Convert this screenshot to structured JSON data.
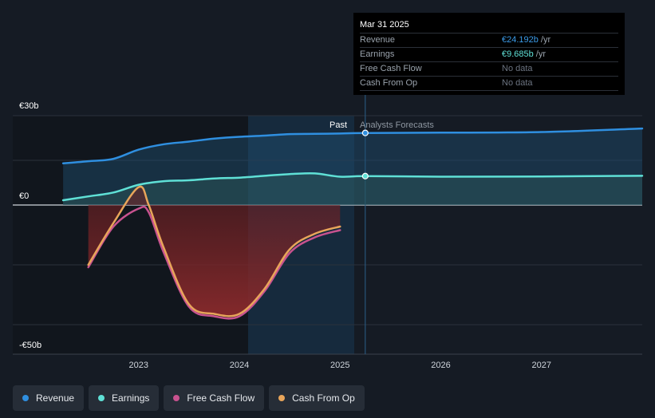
{
  "tooltip": {
    "date": "Mar 31 2025",
    "rows": [
      {
        "label": "Revenue",
        "value": "€24.192b",
        "unit": "/yr",
        "color": "#3b9be8"
      },
      {
        "label": "Earnings",
        "value": "€9.685b",
        "unit": "/yr",
        "color": "#5fe0d6"
      },
      {
        "label": "Free Cash Flow",
        "value": "No data",
        "unit": "",
        "color": "#6b7380"
      },
      {
        "label": "Cash From Op",
        "value": "No data",
        "unit": "",
        "color": "#6b7380"
      }
    ]
  },
  "labels": {
    "past": "Past",
    "forecast": "Analysts Forecasts"
  },
  "legend": [
    {
      "label": "Revenue",
      "color": "#2f8fe0"
    },
    {
      "label": "Earnings",
      "color": "#5fe0d6"
    },
    {
      "label": "Free Cash Flow",
      "color": "#c8528f"
    },
    {
      "label": "Cash From Op",
      "color": "#e8a55a"
    }
  ],
  "chart_data": {
    "type": "line",
    "y_ticks": [
      {
        "value": 30,
        "label": "€30b"
      },
      {
        "value": 0,
        "label": "€0"
      },
      {
        "value": -50,
        "label": "-€50b"
      }
    ],
    "x_ticks": [
      {
        "value": 2023.0,
        "label": "2023"
      },
      {
        "value": 2024.0,
        "label": "2024"
      },
      {
        "value": 2025.0,
        "label": "2025"
      },
      {
        "value": 2026.0,
        "label": "2026"
      },
      {
        "value": 2027.0,
        "label": "2027"
      }
    ],
    "xlim": [
      2021.75,
      2028.0
    ],
    "ylim": [
      -50,
      30
    ],
    "past_end": 2025.25,
    "highlight_start": 2024.25,
    "grid": true,
    "series": [
      {
        "name": "Revenue",
        "color": "#2f8fe0",
        "x": [
          2022.25,
          2022.5,
          2022.75,
          2023.0,
          2023.25,
          2023.5,
          2023.75,
          2024.0,
          2024.25,
          2024.5,
          2024.75,
          2025.0,
          2025.25,
          2026.0,
          2027.0,
          2028.0
        ],
        "y": [
          14.0,
          14.7,
          15.5,
          18.6,
          20.4,
          21.3,
          22.3,
          22.9,
          23.3,
          23.8,
          23.9,
          24.0,
          24.2,
          24.3,
          24.5,
          25.7
        ]
      },
      {
        "name": "Earnings",
        "color": "#5fe0d6",
        "x": [
          2022.25,
          2022.5,
          2022.75,
          2023.0,
          2023.25,
          2023.5,
          2023.75,
          2024.0,
          2024.25,
          2024.5,
          2024.75,
          2025.0,
          2025.25,
          2026.0,
          2027.0,
          2028.0
        ],
        "y": [
          1.6,
          2.9,
          4.2,
          6.8,
          8.0,
          8.3,
          8.9,
          9.2,
          9.8,
          10.4,
          10.6,
          9.5,
          9.7,
          9.5,
          9.6,
          9.8
        ]
      },
      {
        "name": "Free Cash Flow",
        "color": "#c8528f",
        "x": [
          2022.5,
          2022.75,
          2023.0,
          2023.1,
          2023.25,
          2023.5,
          2023.75,
          2024.0,
          2024.25,
          2024.5,
          2024.75,
          2025.0
        ],
        "y": [
          -26.0,
          -9.0,
          -1.5,
          -3.0,
          -20.0,
          -42.5,
          -46.5,
          -46.5,
          -36.0,
          -20.0,
          -13.5,
          -10.5
        ]
      },
      {
        "name": "Cash From Op",
        "color": "#e8a55a",
        "x": [
          2022.5,
          2022.75,
          2023.0,
          2023.1,
          2023.25,
          2023.5,
          2023.75,
          2024.0,
          2024.25,
          2024.5,
          2024.75,
          2025.0
        ],
        "y": [
          -25.0,
          -7.5,
          6.0,
          0.0,
          -18.0,
          -41.5,
          -45.5,
          -45.5,
          -35.0,
          -18.5,
          -12.0,
          -9.0
        ]
      }
    ]
  }
}
